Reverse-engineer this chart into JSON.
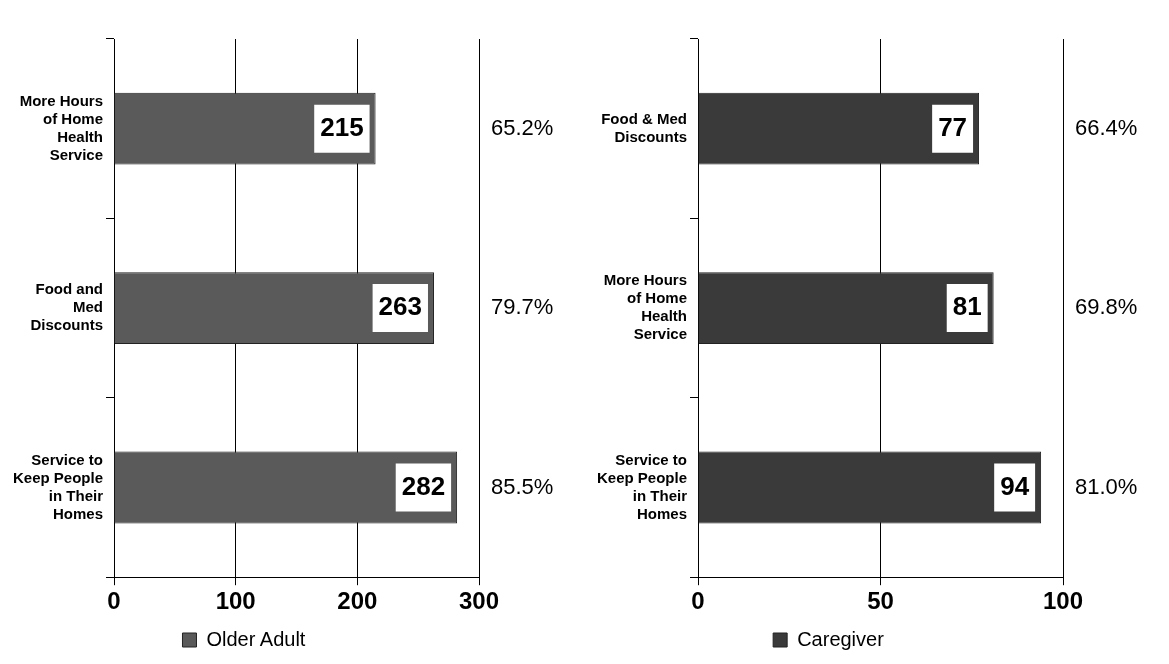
{
  "chart_data": [
    {
      "type": "bar",
      "orientation": "horizontal",
      "categories": [
        "More Hours of Home Health Service",
        "Food and Med Discounts",
        "Service to Keep People in Their Homes"
      ],
      "series": [
        {
          "name": "Older Adult",
          "color": "#5a5a5a",
          "values": [
            215,
            263,
            282
          ]
        }
      ],
      "xlim": [
        0,
        300
      ],
      "xticks": [
        0,
        100,
        200,
        300
      ],
      "grid": "x",
      "legend": "bottom",
      "data_labels": true,
      "annotations": [
        "65.2%",
        "79.7%",
        "85.5%"
      ]
    },
    {
      "type": "bar",
      "orientation": "horizontal",
      "categories": [
        "Food & Med Discounts",
        "More Hours of Home Health Service",
        "Service to Keep People in Their Homes"
      ],
      "series": [
        {
          "name": "Caregiver",
          "color": "#3a3a3a",
          "values": [
            77,
            81,
            94
          ]
        }
      ],
      "xlim": [
        0,
        100
      ],
      "xticks": [
        0,
        50,
        100
      ],
      "grid": "x",
      "legend": "bottom",
      "data_labels": true,
      "annotations": [
        "66.4%",
        "69.8%",
        "81.0%"
      ]
    }
  ]
}
